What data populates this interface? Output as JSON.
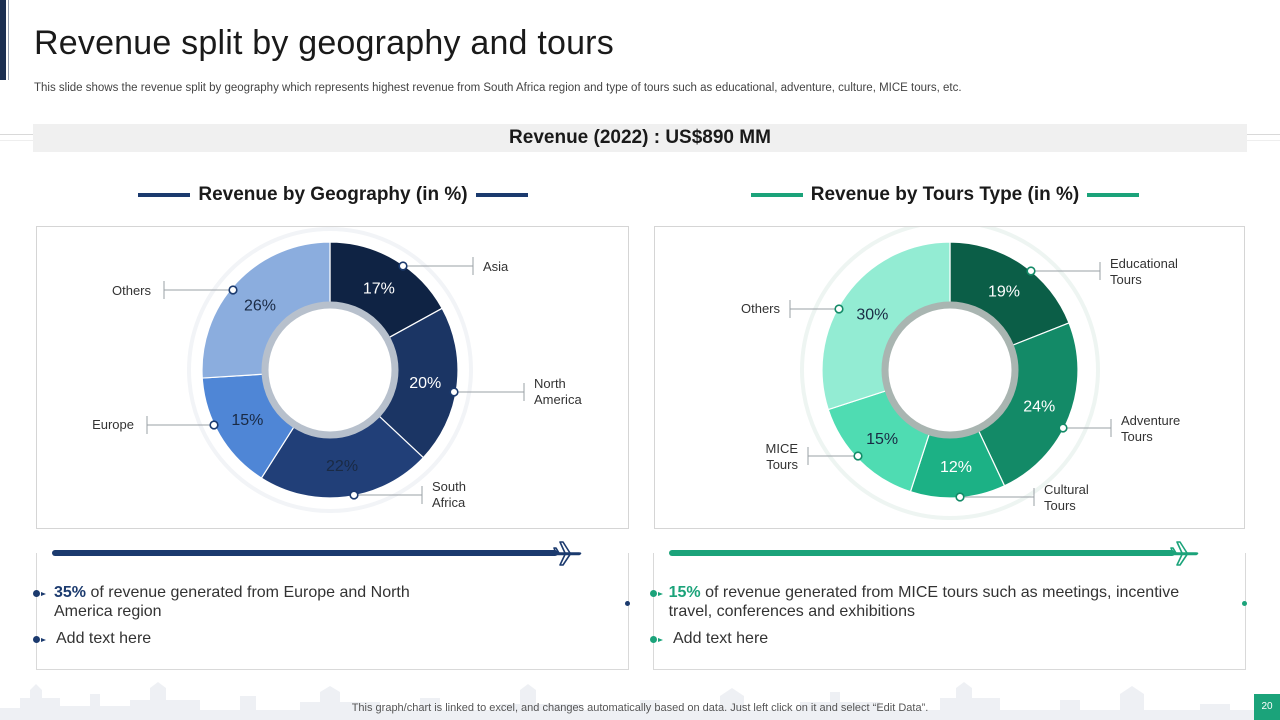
{
  "slide": {
    "title": "Revenue split by geography and tours",
    "subtitle": "This slide shows the revenue split by geography which represents highest revenue from South Africa region and type of tours such as educational, adventure, culture, MICE tours, etc.",
    "revenue_banner": "Revenue (2022) : US$890 MM",
    "footnote": "This graph/chart is linked to excel, and changes automatically based on data. Just left click on it and select “Edit Data”.",
    "page_number": "20"
  },
  "colors": {
    "navy": "#1b3a6e",
    "teal": "#1ba37a"
  },
  "icons": {
    "plane": "airplane-icon"
  },
  "left_card": {
    "bullet1_highlight": "35%",
    "bullet1_text": " of revenue  generated from Europe and North America region",
    "bullet2_text": "Add text here"
  },
  "right_card": {
    "bullet1_highlight": "15%",
    "bullet1_text": " of revenue  generated from MICE tours such as meetings, incentive travel, conferences and exhibitions",
    "bullet2_text": "Add text here"
  },
  "chart_data": [
    {
      "type": "pie",
      "variant": "donut",
      "title": "Revenue by Geography (in %)",
      "series": [
        {
          "label": "Asia",
          "value": 17,
          "display": "17%",
          "color": "#0f2344"
        },
        {
          "label": "North America",
          "value": 20,
          "display": "20%",
          "color": "#1b3564"
        },
        {
          "label": "South Africa",
          "value": 22,
          "display": "22%",
          "color": "#213f78"
        },
        {
          "label": "Europe",
          "value": 15,
          "display": "15%",
          "color": "#4f86d6"
        },
        {
          "label": "Others",
          "value": 26,
          "display": "26%",
          "color": "#8badde"
        }
      ]
    },
    {
      "type": "pie",
      "variant": "donut",
      "title": "Revenue by Tours Type (in %)",
      "series": [
        {
          "label": "Educational Tours",
          "value": 19,
          "display": "19%",
          "color": "#0b5e47"
        },
        {
          "label": "Adventure Tours",
          "value": 24,
          "display": "24%",
          "color": "#138a67"
        },
        {
          "label": "Cultural Tours",
          "value": 12,
          "display": "12%",
          "color": "#1cb185"
        },
        {
          "label": "MICE Tours",
          "value": 15,
          "display": "15%",
          "color": "#4fdcb2"
        },
        {
          "label": "Others",
          "value": 30,
          "display": "30%",
          "color": "#93ecd3"
        }
      ]
    }
  ]
}
